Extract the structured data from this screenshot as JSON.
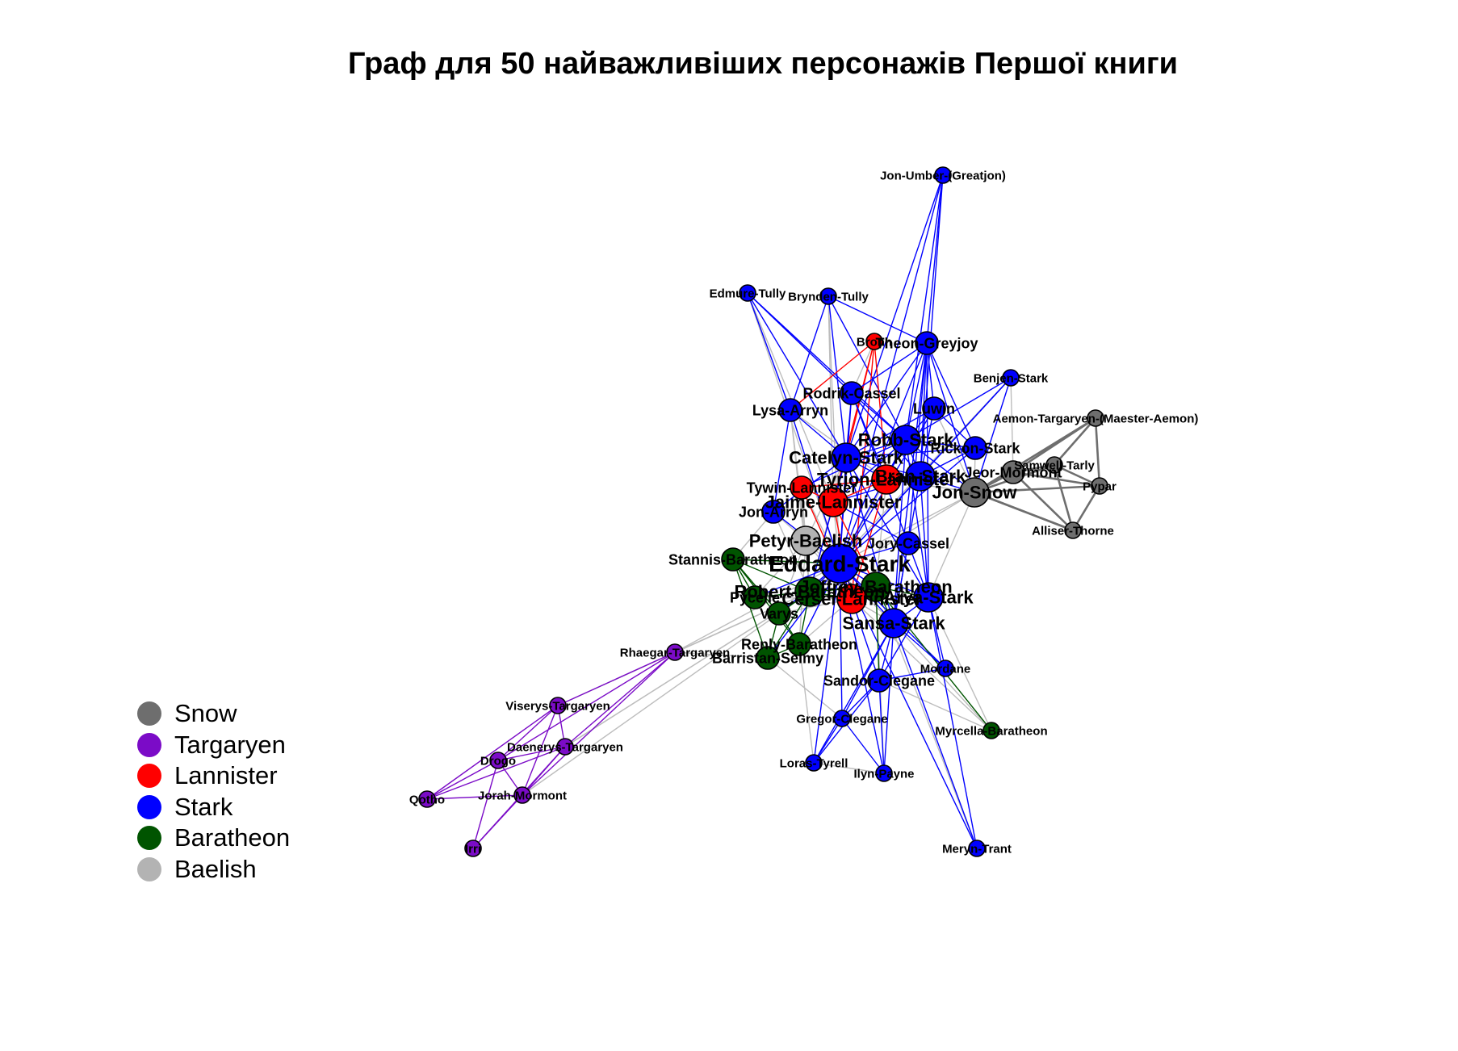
{
  "title": "Граф для 50 найважливіших персонажів Першої книги",
  "legend": [
    {
      "label": "Snow",
      "color": "#6e6e6e"
    },
    {
      "label": "Targaryen",
      "color": "#7b0bc7"
    },
    {
      "label": "Lannister",
      "color": "#ff0000"
    },
    {
      "label": "Stark",
      "color": "#0000ff"
    },
    {
      "label": "Baratheon",
      "color": "#005400"
    },
    {
      "label": "Baelish",
      "color": "#b3b3b3"
    }
  ],
  "nodes": [
    {
      "id": "jon-umber",
      "label": "Jon-Umber-(Greatjon)",
      "house": "Stark",
      "size": "s"
    },
    {
      "id": "edmure",
      "label": "Edmure-Tully",
      "house": "Stark",
      "size": "s"
    },
    {
      "id": "brynden",
      "label": "Brynden-Tully",
      "house": "Stark",
      "size": "s"
    },
    {
      "id": "bronn",
      "label": "Bronn",
      "house": "Lannister",
      "size": "s"
    },
    {
      "id": "theon",
      "label": "Theon-Greyjoy",
      "house": "Stark",
      "size": "m"
    },
    {
      "id": "benjen",
      "label": "Benjen-Stark",
      "house": "Stark",
      "size": "s"
    },
    {
      "id": "rodrik",
      "label": "Rodrik-Cassel",
      "house": "Stark",
      "size": "m"
    },
    {
      "id": "lysa",
      "label": "Lysa-Arryn",
      "house": "Stark",
      "size": "m"
    },
    {
      "id": "luwin",
      "label": "Luwin",
      "house": "Stark",
      "size": "m"
    },
    {
      "id": "aemon",
      "label": "Aemon-Targaryen-(Maester-Aemon)",
      "house": "Snow",
      "size": "s"
    },
    {
      "id": "robb",
      "label": "Robb-Stark",
      "house": "Stark",
      "size": "l"
    },
    {
      "id": "rickon",
      "label": "Rickon-Stark",
      "house": "Stark",
      "size": "m"
    },
    {
      "id": "catelyn",
      "label": "Catelyn-Stark",
      "house": "Stark",
      "size": "l"
    },
    {
      "id": "samwell",
      "label": "Samwell-Tarly",
      "house": "Snow",
      "size": "s"
    },
    {
      "id": "jeor",
      "label": "Jeor-Mormont",
      "house": "Snow",
      "size": "m"
    },
    {
      "id": "pypar",
      "label": "Pypar",
      "house": "Snow",
      "size": "s"
    },
    {
      "id": "tyrion",
      "label": "Tyrion-Lannister",
      "house": "Lannister",
      "size": "l"
    },
    {
      "id": "bran",
      "label": "Bran-Stark",
      "house": "Stark",
      "size": "l"
    },
    {
      "id": "jon-snow",
      "label": "Jon-Snow",
      "house": "Snow",
      "size": "l"
    },
    {
      "id": "tywin",
      "label": "Tywin-Lannister",
      "house": "Lannister",
      "size": "m"
    },
    {
      "id": "jaime",
      "label": "Jaime-Lannister",
      "house": "Lannister",
      "size": "l"
    },
    {
      "id": "jon-arryn",
      "label": "Jon-Arryn",
      "house": "Stark",
      "size": "m"
    },
    {
      "id": "alliser",
      "label": "Alliser-Thorne",
      "house": "Snow",
      "size": "s"
    },
    {
      "id": "petyr",
      "label": "Petyr-Baelish",
      "house": "Baelish",
      "size": "l"
    },
    {
      "id": "jory",
      "label": "Jory-Cassel",
      "house": "Stark",
      "size": "m"
    },
    {
      "id": "stannis",
      "label": "Stannis-Baratheon",
      "house": "Baratheon",
      "size": "m"
    },
    {
      "id": "eddard",
      "label": "Eddard-Stark",
      "house": "Stark",
      "size": "xl"
    },
    {
      "id": "joffrey",
      "label": "Joffrey-Baratheon",
      "house": "Baratheon",
      "size": "l"
    },
    {
      "id": "robert",
      "label": "Robert-Baratheon",
      "house": "Baratheon",
      "size": "l"
    },
    {
      "id": "cersei",
      "label": "Cersei-Lannister",
      "house": "Lannister",
      "size": "l"
    },
    {
      "id": "arya",
      "label": "Arya-Stark",
      "house": "Stark",
      "size": "l"
    },
    {
      "id": "pycelle",
      "label": "Pycelle",
      "house": "Baratheon",
      "size": "m"
    },
    {
      "id": "varys",
      "label": "Varys",
      "house": "Baratheon",
      "size": "m"
    },
    {
      "id": "sansa",
      "label": "Sansa-Stark",
      "house": "Stark",
      "size": "l"
    },
    {
      "id": "renly",
      "label": "Renly-Baratheon",
      "house": "Baratheon",
      "size": "m"
    },
    {
      "id": "barristan",
      "label": "Barristan-Selmy",
      "house": "Baratheon",
      "size": "m"
    },
    {
      "id": "rhaegar",
      "label": "Rhaegar-Targaryen",
      "house": "Targaryen",
      "size": "s"
    },
    {
      "id": "mordane",
      "label": "Mordane",
      "house": "Stark",
      "size": "s"
    },
    {
      "id": "sandor",
      "label": "Sandor-Clegane",
      "house": "Stark",
      "size": "m"
    },
    {
      "id": "viserys",
      "label": "Viserys-Targaryen",
      "house": "Targaryen",
      "size": "s"
    },
    {
      "id": "gregor",
      "label": "Gregor-Clegane",
      "house": "Stark",
      "size": "s"
    },
    {
      "id": "myrcella",
      "label": "Myrcella-Baratheon",
      "house": "Baratheon",
      "size": "s"
    },
    {
      "id": "daenerys",
      "label": "Daenerys-Targaryen",
      "house": "Targaryen",
      "size": "s"
    },
    {
      "id": "drogo",
      "label": "Drogo",
      "house": "Targaryen",
      "size": "s"
    },
    {
      "id": "loras",
      "label": "Loras-Tyrell",
      "house": "Stark",
      "size": "s"
    },
    {
      "id": "ilyn",
      "label": "Ilyn-Payne",
      "house": "Stark",
      "size": "s"
    },
    {
      "id": "jorah",
      "label": "Jorah-Mormont",
      "house": "Targaryen",
      "size": "s"
    },
    {
      "id": "qotho",
      "label": "Qotho",
      "house": "Targaryen",
      "size": "s"
    },
    {
      "id": "irri",
      "label": "Irri",
      "house": "Targaryen",
      "size": "s"
    },
    {
      "id": "meryn",
      "label": "Meryn-Trant",
      "house": "Stark",
      "size": "s"
    }
  ],
  "edges": [
    [
      "jon-umber",
      "robb",
      "Stark"
    ],
    [
      "jon-umber",
      "catelyn",
      "Stark"
    ],
    [
      "jon-umber",
      "bran",
      "Stark"
    ],
    [
      "jon-umber",
      "eddard",
      "Stark"
    ],
    [
      "jon-umber",
      "theon",
      "Stark"
    ],
    [
      "edmure",
      "catelyn",
      "Stark"
    ],
    [
      "edmure",
      "lysa",
      "Stark"
    ],
    [
      "edmure",
      "robb",
      "Stark"
    ],
    [
      "edmure",
      "jaime",
      "Baelish"
    ],
    [
      "edmure",
      "rodrik",
      "Stark"
    ],
    [
      "edmure",
      "eddard",
      "Baelish"
    ],
    [
      "brynden",
      "catelyn",
      "Stark"
    ],
    [
      "brynden",
      "robb",
      "Stark"
    ],
    [
      "brynden",
      "lysa",
      "Stark"
    ],
    [
      "brynden",
      "theon",
      "Stark"
    ],
    [
      "brynden",
      "jaime",
      "Baelish"
    ],
    [
      "brynden",
      "eddard",
      "Baelish"
    ],
    [
      "bronn",
      "tyrion",
      "Lannister"
    ],
    [
      "bronn",
      "catelyn",
      "Lannister"
    ],
    [
      "bronn",
      "jaime",
      "Lannister"
    ],
    [
      "bronn",
      "lysa",
      "Lannister"
    ],
    [
      "bronn",
      "cersei",
      "Lannister"
    ],
    [
      "bronn",
      "rodrik",
      "Baelish"
    ],
    [
      "theon",
      "robb",
      "Stark"
    ],
    [
      "theon",
      "bran",
      "Stark"
    ],
    [
      "theon",
      "catelyn",
      "Stark"
    ],
    [
      "theon",
      "eddard",
      "Stark"
    ],
    [
      "theon",
      "luwin",
      "Stark"
    ],
    [
      "theon",
      "rickon",
      "Stark"
    ],
    [
      "theon",
      "jon-snow",
      "Stark"
    ],
    [
      "theon",
      "rodrik",
      "Stark"
    ],
    [
      "theon",
      "sansa",
      "Stark"
    ],
    [
      "theon",
      "arya",
      "Stark"
    ],
    [
      "theon",
      "jory",
      "Stark"
    ],
    [
      "benjen",
      "jon-snow",
      "Stark"
    ],
    [
      "benjen",
      "robb",
      "Stark"
    ],
    [
      "benjen",
      "bran",
      "Stark"
    ],
    [
      "benjen",
      "eddard",
      "Stark"
    ],
    [
      "benjen",
      "jeor",
      "Baelish"
    ],
    [
      "benjen",
      "robert",
      "Baelish"
    ],
    [
      "rodrik",
      "catelyn",
      "Stark"
    ],
    [
      "rodrik",
      "robb",
      "Stark"
    ],
    [
      "rodrik",
      "bran",
      "Stark"
    ],
    [
      "rodrik",
      "tyrion",
      "Stark"
    ],
    [
      "rodrik",
      "jory",
      "Stark"
    ],
    [
      "rodrik",
      "eddard",
      "Stark"
    ],
    [
      "lysa",
      "catelyn",
      "Stark"
    ],
    [
      "lysa",
      "jon-arryn",
      "Stark"
    ],
    [
      "lysa",
      "tyrion",
      "Baelish"
    ],
    [
      "lysa",
      "petyr",
      "Baelish"
    ],
    [
      "lysa",
      "eddard",
      "Stark"
    ],
    [
      "lysa",
      "robert",
      "Baelish"
    ],
    [
      "luwin",
      "bran",
      "Stark"
    ],
    [
      "luwin",
      "robb",
      "Stark"
    ],
    [
      "luwin",
      "rickon",
      "Stark"
    ],
    [
      "luwin",
      "catelyn",
      "Stark"
    ],
    [
      "luwin",
      "eddard",
      "Stark"
    ],
    [
      "luwin",
      "jon-snow",
      "Baelish"
    ],
    [
      "aemon",
      "jeor",
      "Snow"
    ],
    [
      "aemon",
      "jon-snow",
      "Snow"
    ],
    [
      "aemon",
      "samwell",
      "Snow"
    ],
    [
      "aemon",
      "pypar",
      "Snow"
    ],
    [
      "robb",
      "catelyn",
      "Stark"
    ],
    [
      "robb",
      "bran",
      "Stark"
    ],
    [
      "robb",
      "eddard",
      "Stark"
    ],
    [
      "robb",
      "jon-snow",
      "Stark"
    ],
    [
      "robb",
      "sansa",
      "Stark"
    ],
    [
      "robb",
      "arya",
      "Stark"
    ],
    [
      "robb",
      "rickon",
      "Stark"
    ],
    [
      "robb",
      "tyrion",
      "Stark"
    ],
    [
      "robb",
      "jaime",
      "Stark"
    ],
    [
      "robb",
      "tywin",
      "Stark"
    ],
    [
      "rickon",
      "bran",
      "Stark"
    ],
    [
      "rickon",
      "catelyn",
      "Stark"
    ],
    [
      "rickon",
      "jon-snow",
      "Baelish"
    ],
    [
      "rickon",
      "eddard",
      "Stark"
    ],
    [
      "catelyn",
      "bran",
      "Stark"
    ],
    [
      "catelyn",
      "eddard",
      "Stark"
    ],
    [
      "catelyn",
      "tyrion",
      "Stark"
    ],
    [
      "catelyn",
      "jaime",
      "Stark"
    ],
    [
      "catelyn",
      "sansa",
      "Stark"
    ],
    [
      "catelyn",
      "arya",
      "Stark"
    ],
    [
      "catelyn",
      "petyr",
      "Baelish"
    ],
    [
      "catelyn",
      "jon-arryn",
      "Stark"
    ],
    [
      "catelyn",
      "robert",
      "Stark"
    ],
    [
      "samwell",
      "jon-snow",
      "Snow"
    ],
    [
      "samwell",
      "jeor",
      "Snow"
    ],
    [
      "samwell",
      "pypar",
      "Snow"
    ],
    [
      "samwell",
      "alliser",
      "Snow"
    ],
    [
      "jeor",
      "jon-snow",
      "Snow"
    ],
    [
      "jeor",
      "alliser",
      "Snow"
    ],
    [
      "jeor",
      "pypar",
      "Snow"
    ],
    [
      "pypar",
      "jon-snow",
      "Snow"
    ],
    [
      "pypar",
      "alliser",
      "Snow"
    ],
    [
      "tyrion",
      "jaime",
      "Lannister"
    ],
    [
      "tyrion",
      "cersei",
      "Lannister"
    ],
    [
      "tyrion",
      "tywin",
      "Lannister"
    ],
    [
      "tyrion",
      "jon-snow",
      "Baelish"
    ],
    [
      "tyrion",
      "bran",
      "Stark"
    ],
    [
      "tyrion",
      "eddard",
      "Baelish"
    ],
    [
      "tyrion",
      "joffrey",
      "Baelish"
    ],
    [
      "bran",
      "eddard",
      "Stark"
    ],
    [
      "bran",
      "jon-snow",
      "Stark"
    ],
    [
      "bran",
      "arya",
      "Stark"
    ],
    [
      "bran",
      "sansa",
      "Stark"
    ],
    [
      "bran",
      "jaime",
      "Stark"
    ],
    [
      "jon-snow",
      "alliser",
      "Snow"
    ],
    [
      "jon-snow",
      "eddard",
      "Baelish"
    ],
    [
      "jon-snow",
      "arya",
      "Baelish"
    ],
    [
      "jon-snow",
      "robert",
      "Baelish"
    ],
    [
      "tywin",
      "jaime",
      "Lannister"
    ],
    [
      "tywin",
      "cersei",
      "Lannister"
    ],
    [
      "tywin",
      "eddard",
      "Baelish"
    ],
    [
      "tywin",
      "robert",
      "Baelish"
    ],
    [
      "jaime",
      "cersei",
      "Lannister"
    ],
    [
      "jaime",
      "eddard",
      "Baelish"
    ],
    [
      "jaime",
      "robert",
      "Baelish"
    ],
    [
      "jaime",
      "joffrey",
      "Lannister"
    ],
    [
      "jon-arryn",
      "eddard",
      "Stark"
    ],
    [
      "jon-arryn",
      "robert",
      "Baelish"
    ],
    [
      "jon-arryn",
      "petyr",
      "Baelish"
    ],
    [
      "jon-arryn",
      "stannis",
      "Baelish"
    ],
    [
      "alliser",
      "jon-snow",
      "Snow"
    ],
    [
      "petyr",
      "eddard",
      "Baelish"
    ],
    [
      "petyr",
      "varys",
      "Baelish"
    ],
    [
      "petyr",
      "cersei",
      "Baelish"
    ],
    [
      "petyr",
      "renly",
      "Baelish"
    ],
    [
      "petyr",
      "sansa",
      "Baelish"
    ],
    [
      "petyr",
      "robert",
      "Baelish"
    ],
    [
      "petyr",
      "pycelle",
      "Baelish"
    ],
    [
      "jory",
      "eddard",
      "Stark"
    ],
    [
      "jory",
      "arya",
      "Stark"
    ],
    [
      "jory",
      "sansa",
      "Stark"
    ],
    [
      "jory",
      "jaime",
      "Stark"
    ],
    [
      "stannis",
      "robert",
      "Baratheon"
    ],
    [
      "stannis",
      "renly",
      "Baratheon"
    ],
    [
      "stannis",
      "eddard",
      "Baratheon"
    ],
    [
      "stannis",
      "pycelle",
      "Baratheon"
    ],
    [
      "stannis",
      "varys",
      "Baratheon"
    ],
    [
      "stannis",
      "barristan",
      "Baratheon"
    ],
    [
      "eddard",
      "robert",
      "Stark"
    ],
    [
      "eddard",
      "arya",
      "Stark"
    ],
    [
      "eddard",
      "sansa",
      "Stark"
    ],
    [
      "eddard",
      "cersei",
      "Stark"
    ],
    [
      "eddard",
      "joffrey",
      "Stark"
    ],
    [
      "eddard",
      "varys",
      "Stark"
    ],
    [
      "eddard",
      "pycelle",
      "Stark"
    ],
    [
      "eddard",
      "renly",
      "Stark"
    ],
    [
      "eddard",
      "barristan",
      "Stark"
    ],
    [
      "eddard",
      "sandor",
      "Stark"
    ],
    [
      "eddard",
      "gregor",
      "Stark"
    ],
    [
      "eddard",
      "loras",
      "Stark"
    ],
    [
      "eddard",
      "ilyn",
      "Stark"
    ],
    [
      "eddard",
      "meryn",
      "Stark"
    ],
    [
      "eddard",
      "mordane",
      "Stark"
    ],
    [
      "joffrey",
      "cersei",
      "Baratheon"
    ],
    [
      "joffrey",
      "robert",
      "Baratheon"
    ],
    [
      "joffrey",
      "sansa",
      "Baratheon"
    ],
    [
      "joffrey",
      "arya",
      "Baratheon"
    ],
    [
      "joffrey",
      "sandor",
      "Baratheon"
    ],
    [
      "joffrey",
      "myrcella",
      "Baratheon"
    ],
    [
      "joffrey",
      "ilyn",
      "Baelish"
    ],
    [
      "joffrey",
      "meryn",
      "Baelish"
    ],
    [
      "robert",
      "cersei",
      "Baratheon"
    ],
    [
      "robert",
      "renly",
      "Baratheon"
    ],
    [
      "robert",
      "barristan",
      "Baratheon"
    ],
    [
      "robert",
      "varys",
      "Baratheon"
    ],
    [
      "robert",
      "pycelle",
      "Baratheon"
    ],
    [
      "robert",
      "rhaegar",
      "Baelish"
    ],
    [
      "robert",
      "viserys",
      "Baelish"
    ],
    [
      "robert",
      "daenerys",
      "Baelish"
    ],
    [
      "cersei",
      "sansa",
      "Baelish"
    ],
    [
      "cersei",
      "renly",
      "Baelish"
    ],
    [
      "cersei",
      "varys",
      "Baelish"
    ],
    [
      "cersei",
      "pycelle",
      "Baelish"
    ],
    [
      "cersei",
      "myrcella",
      "Baelish"
    ],
    [
      "arya",
      "sansa",
      "Stark"
    ],
    [
      "arya",
      "mordane",
      "Stark"
    ],
    [
      "arya",
      "sandor",
      "Stark"
    ],
    [
      "arya",
      "meryn",
      "Stark"
    ],
    [
      "arya",
      "myrcella",
      "Baelish"
    ],
    [
      "sansa",
      "sandor",
      "Stark"
    ],
    [
      "sansa",
      "mordane",
      "Stark"
    ],
    [
      "sansa",
      "loras",
      "Stark"
    ],
    [
      "sansa",
      "ilyn",
      "Stark"
    ],
    [
      "sansa",
      "gregor",
      "Stark"
    ],
    [
      "sansa",
      "meryn",
      "Stark"
    ],
    [
      "sansa",
      "myrcella",
      "Baelish"
    ],
    [
      "renly",
      "barristan",
      "Baratheon"
    ],
    [
      "renly",
      "loras",
      "Baelish"
    ],
    [
      "renly",
      "varys",
      "Baratheon"
    ],
    [
      "barristan",
      "rhaegar",
      "Baelish"
    ],
    [
      "barristan",
      "varys",
      "Baratheon"
    ],
    [
      "barristan",
      "gregor",
      "Baelish"
    ],
    [
      "sandor",
      "gregor",
      "Stark"
    ],
    [
      "sandor",
      "loras",
      "Stark"
    ],
    [
      "sandor",
      "ilyn",
      "Stark"
    ],
    [
      "sandor",
      "mordane",
      "Stark"
    ],
    [
      "sandor",
      "myrcella",
      "Baelish"
    ],
    [
      "gregor",
      "loras",
      "Stark"
    ],
    [
      "gregor",
      "ilyn",
      "Stark"
    ],
    [
      "loras",
      "ilyn",
      "Baelish"
    ],
    [
      "rhaegar",
      "viserys",
      "Targaryen"
    ],
    [
      "rhaegar",
      "daenerys",
      "Targaryen"
    ],
    [
      "rhaegar",
      "drogo",
      "Targaryen"
    ],
    [
      "rhaegar",
      "jorah",
      "Targaryen"
    ],
    [
      "viserys",
      "daenerys",
      "Targaryen"
    ],
    [
      "viserys",
      "drogo",
      "Targaryen"
    ],
    [
      "viserys",
      "jorah",
      "Targaryen"
    ],
    [
      "viserys",
      "qotho",
      "Targaryen"
    ],
    [
      "daenerys",
      "drogo",
      "Targaryen"
    ],
    [
      "daenerys",
      "jorah",
      "Targaryen"
    ],
    [
      "daenerys",
      "qotho",
      "Targaryen"
    ],
    [
      "daenerys",
      "irri",
      "Targaryen"
    ],
    [
      "drogo",
      "jorah",
      "Targaryen"
    ],
    [
      "drogo",
      "qotho",
      "Targaryen"
    ],
    [
      "drogo",
      "irri",
      "Targaryen"
    ],
    [
      "jorah",
      "qotho",
      "Targaryen"
    ],
    [
      "jorah",
      "irri",
      "Targaryen"
    ],
    [
      "daenerys",
      "robert",
      "Baelish"
    ],
    [
      "jorah",
      "robert",
      "Baelish"
    ],
    [
      "rhaegar",
      "eddard",
      "Baelish"
    ]
  ]
}
